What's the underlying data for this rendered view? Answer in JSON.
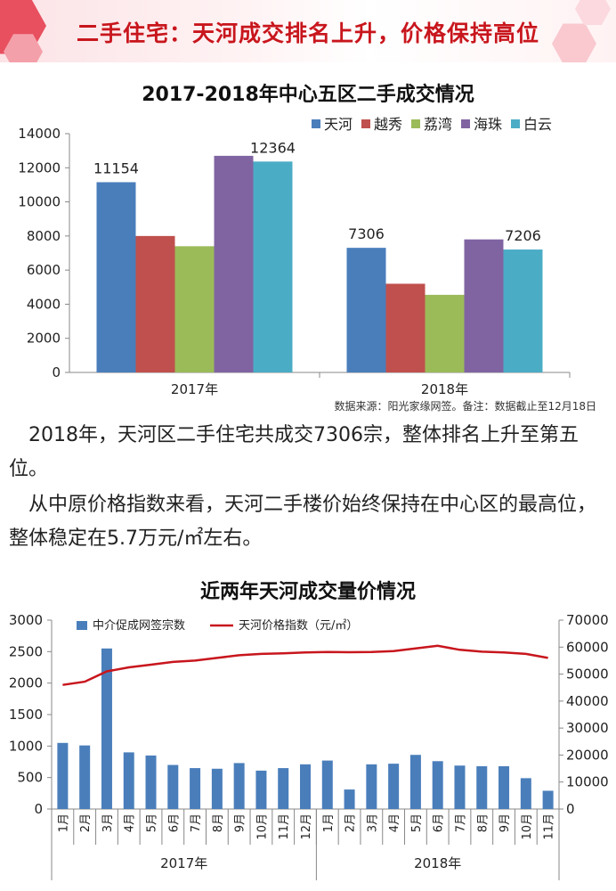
{
  "header": {
    "title": "二手住宅：天河成交排名上升，价格保持高位"
  },
  "paragraphs": [
    "2018年，天河区二手住宅共成交7306宗，整体排名上升至第五位。",
    "从中原价格指数来看，天河二手楼价始终保持在中心区的最高位，整体稳定在5.7万元/㎡左右。"
  ],
  "chart_data": [
    {
      "type": "bar",
      "title": "2017-2018年中心五区二手成交情况",
      "categories": [
        "2017年",
        "2018年"
      ],
      "series": [
        {
          "name": "天河",
          "values": [
            11154,
            7306
          ],
          "color": "#4a7ebb"
        },
        {
          "name": "越秀",
          "values": [
            8000,
            5200
          ],
          "color": "#c0504d"
        },
        {
          "name": "荔湾",
          "values": [
            7400,
            4550
          ],
          "color": "#9bbb59"
        },
        {
          "name": "海珠",
          "values": [
            12700,
            7800
          ],
          "color": "#8064a2"
        },
        {
          "name": "白云",
          "values": [
            12364,
            7206
          ],
          "color": "#4bacc6"
        }
      ],
      "data_labels": [
        {
          "series": "天河",
          "category": "2017年",
          "text": "11154"
        },
        {
          "series": "白云",
          "category": "2017年",
          "text": "12364"
        },
        {
          "series": "天河",
          "category": "2018年",
          "text": "7306"
        },
        {
          "series": "白云",
          "category": "2018年",
          "text": "7206"
        }
      ],
      "ylim": [
        0,
        14000
      ],
      "yticks": [
        0,
        2000,
        4000,
        6000,
        8000,
        10000,
        12000,
        14000
      ],
      "legend": "top-right",
      "grid": false,
      "note": "数据来源：阳光家缘网签。备注：数据截止至12月18日"
    },
    {
      "type": "bar",
      "title": "近两年天河成交量价情况",
      "categories": [
        "1月",
        "2月",
        "3月",
        "4月",
        "5月",
        "6月",
        "7月",
        "8月",
        "9月",
        "10月",
        "11月",
        "12月",
        "1月",
        "2月",
        "3月",
        "4月",
        "5月",
        "6月",
        "7月",
        "8月",
        "9月",
        "10月",
        "11月"
      ],
      "groups": [
        {
          "label": "2017年",
          "count": 12
        },
        {
          "label": "2018年",
          "count": 11
        }
      ],
      "series": [
        {
          "name": "中介促成网签宗数",
          "type": "bar",
          "axis": "left",
          "color": "#4a7ebb",
          "values": [
            1050,
            1010,
            2550,
            900,
            850,
            700,
            650,
            640,
            730,
            610,
            650,
            710,
            770,
            310,
            710,
            720,
            860,
            760,
            690,
            680,
            680,
            490,
            290
          ]
        },
        {
          "name": "天河价格指数（元/㎡）",
          "type": "line",
          "axis": "right",
          "color": "#c8161d",
          "values": [
            46000,
            47200,
            51000,
            52500,
            53500,
            54500,
            55000,
            56000,
            57000,
            57500,
            57700,
            58000,
            58200,
            58100,
            58200,
            58500,
            59500,
            60500,
            59000,
            58300,
            58000,
            57500,
            56000
          ]
        }
      ],
      "ylim_left": [
        0,
        3000
      ],
      "yticks_left": [
        0,
        500,
        1000,
        1500,
        2000,
        2500,
        3000
      ],
      "ylim_right": [
        0,
        70000
      ],
      "yticks_right": [
        0,
        10000,
        20000,
        30000,
        40000,
        50000,
        60000,
        70000
      ],
      "legend": "top",
      "grid": false
    }
  ]
}
